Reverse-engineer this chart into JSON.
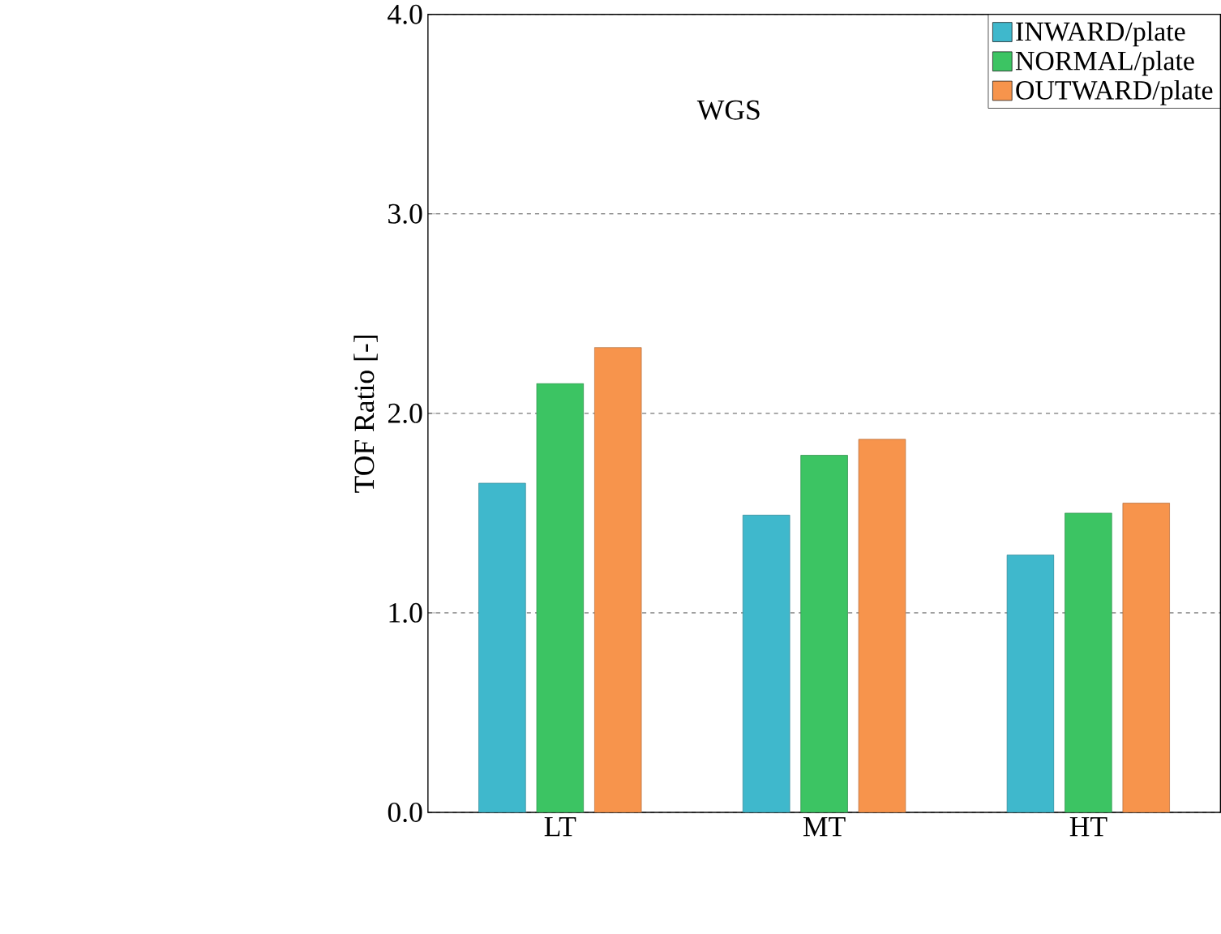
{
  "chart_data": {
    "type": "bar",
    "ylabel": "TOF Ratio [-]",
    "categories": [
      "LT",
      "MT",
      "HT"
    ],
    "series": [
      {
        "name": "INWARD/plate",
        "color": "#3fb8cc",
        "values": [
          1.65,
          1.49,
          1.29
        ]
      },
      {
        "name": "NORMAL/plate",
        "color": "#3cc463",
        "values": [
          2.15,
          1.79,
          1.5
        ]
      },
      {
        "name": "OUTWARD/plate",
        "color": "#f7944c",
        "values": [
          2.33,
          1.87,
          1.55
        ]
      }
    ],
    "ylim": [
      0,
      4
    ],
    "yticks": [
      {
        "value": 0,
        "label": "0.0"
      },
      {
        "value": 1,
        "label": "1.0"
      },
      {
        "value": 2,
        "label": "2.0"
      },
      {
        "value": 3,
        "label": "3.0"
      },
      {
        "value": 4,
        "label": "4.0"
      }
    ],
    "grid": "y",
    "legend": "top right",
    "annotations": [
      "WGS"
    ]
  }
}
